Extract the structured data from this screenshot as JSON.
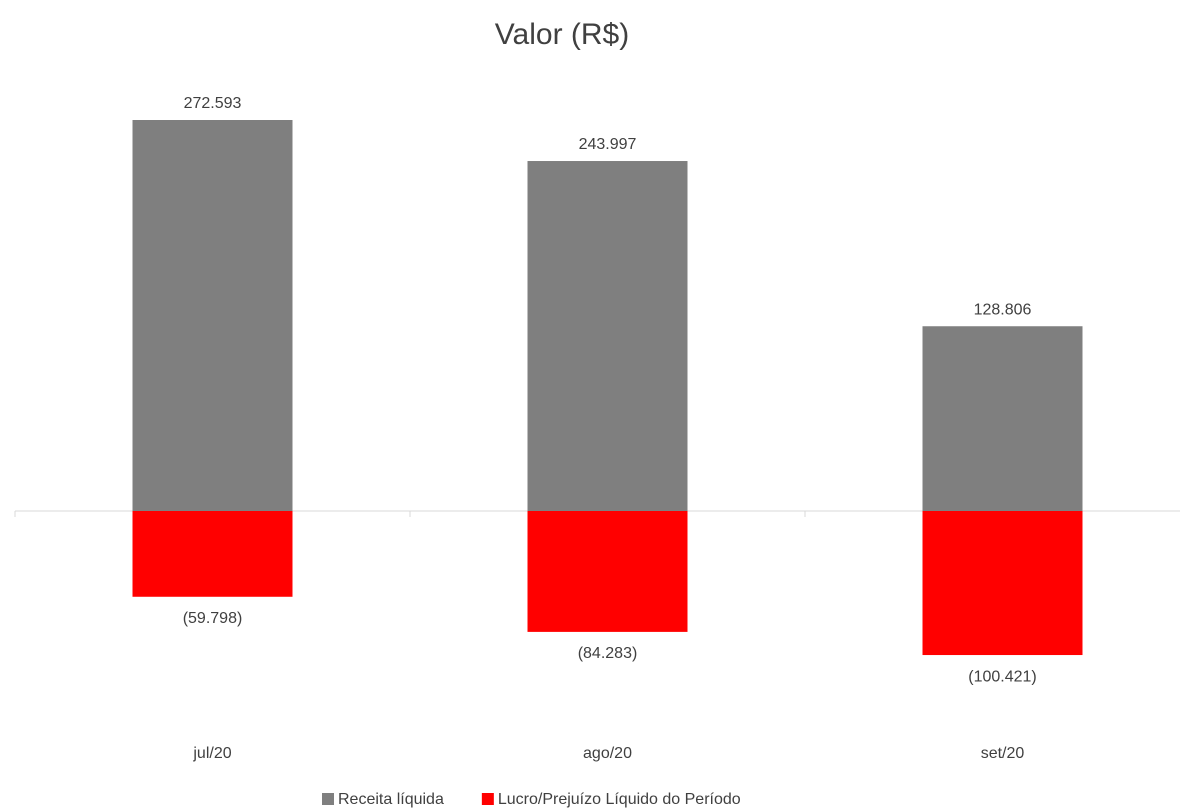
{
  "chart_data": {
    "type": "bar",
    "title": "Valor (R$)",
    "categories": [
      "jul/20",
      "ago/20",
      "set/20"
    ],
    "series": [
      {
        "name": "Receita líquida",
        "color": "#7f7f7f",
        "values": [
          272593,
          243997,
          128806
        ],
        "value_labels": [
          "272.593",
          "243.997",
          "128.806"
        ]
      },
      {
        "name": "Lucro/Prejuízo Líquido do Período",
        "color": "#ff0000",
        "values": [
          -59798,
          -84283,
          -100421
        ],
        "value_labels": [
          "(59.798)",
          "(84.283)",
          "(100.421)"
        ]
      }
    ],
    "legend": "bottom"
  }
}
